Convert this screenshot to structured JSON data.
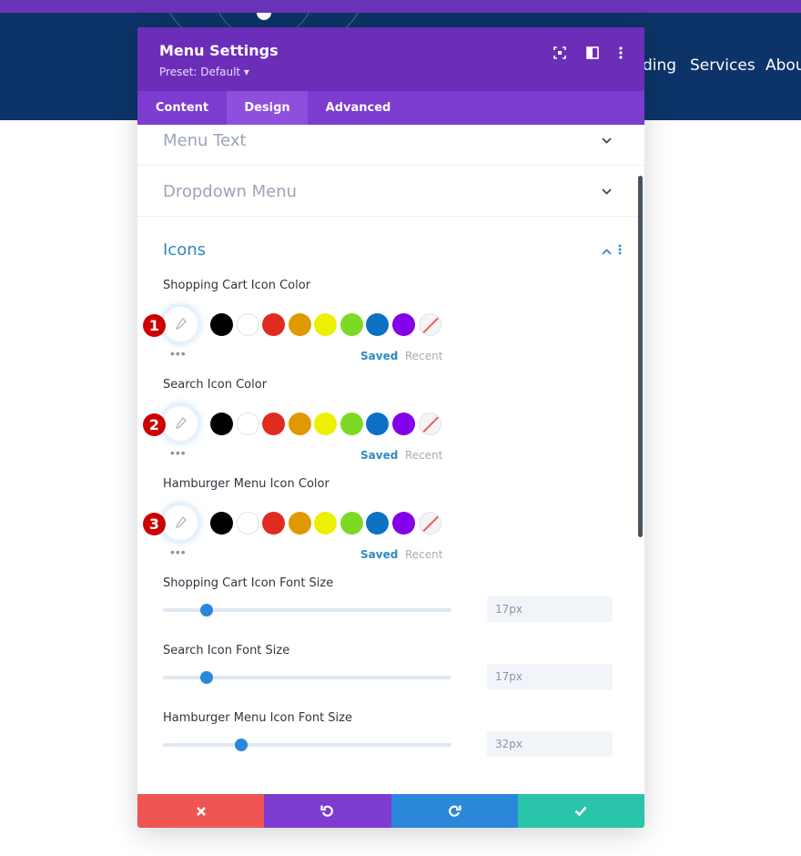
{
  "site": {
    "nav_items": [
      "ding",
      "Services",
      "Abou"
    ]
  },
  "panel": {
    "title": "Menu Settings",
    "preset": "Preset: Default ▾",
    "header_icons": [
      "focus-icon",
      "layout-split-icon",
      "more-vertical-icon"
    ],
    "tabs": [
      {
        "label": "Content",
        "active": false
      },
      {
        "label": "Design",
        "active": true
      },
      {
        "label": "Advanced",
        "active": false
      }
    ]
  },
  "sections": {
    "menu_text": "Menu Text",
    "dropdown_menu": "Dropdown Menu",
    "icons": "Icons"
  },
  "color_fields": [
    {
      "label": "Shopping Cart Icon Color",
      "marker": "1",
      "saved": "Saved",
      "recent": "Recent"
    },
    {
      "label": "Search Icon Color",
      "marker": "2",
      "saved": "Saved",
      "recent": "Recent"
    },
    {
      "label": "Hamburger Menu Icon Color",
      "marker": "3",
      "saved": "Saved",
      "recent": "Recent"
    }
  ],
  "swatch_colors": [
    "#000000",
    "#ffffff",
    "#e02b20",
    "#e09900",
    "#edf000",
    "#7cda24",
    "#0c71c3",
    "#8300e9"
  ],
  "slider_fields": [
    {
      "label": "Shopping Cart Icon Font Size",
      "value": "17px",
      "fraction": 0.15
    },
    {
      "label": "Search Icon Font Size",
      "value": "17px",
      "fraction": 0.15
    },
    {
      "label": "Hamburger Menu Icon Font Size",
      "value": "32px",
      "fraction": 0.27
    }
  ],
  "footer": {
    "buttons": [
      {
        "name": "cancel-button",
        "glyph": "✖",
        "color": "#ef5555"
      },
      {
        "name": "undo-button",
        "glyph": "↺",
        "color": "#7d3bd0"
      },
      {
        "name": "redo-button",
        "glyph": "↻",
        "color": "#2b87da"
      },
      {
        "name": "save-button",
        "glyph": "✔",
        "color": "#29c4a9"
      }
    ]
  },
  "colors": {
    "header": "#6c2eb9",
    "tabs": "#7d3bd0",
    "accent": "#2b87da",
    "site_header": "#0d3468"
  }
}
